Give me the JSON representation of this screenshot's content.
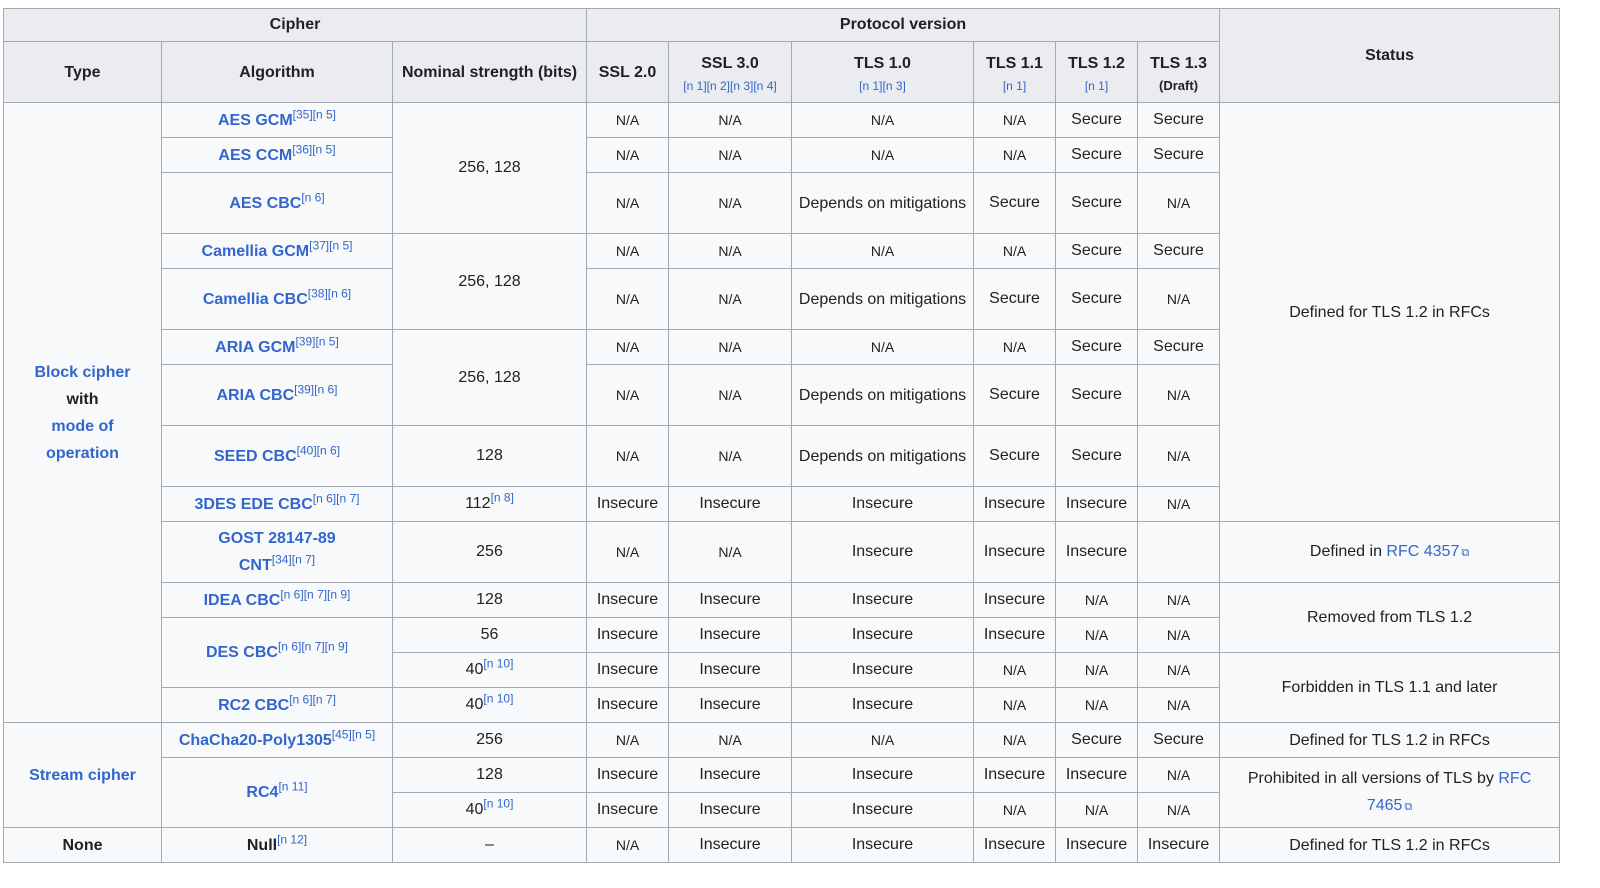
{
  "colors": {
    "secure": "#9ff8c8",
    "insecure": "#f7a3a5",
    "depends": "#ffead3",
    "na": "#ececec",
    "header": "#eaecf0",
    "link": "#3366cc"
  },
  "header": {
    "cipher": "Cipher",
    "protocol_version": "Protocol version",
    "status": "Status",
    "type": "Type",
    "algorithm": "Algorithm",
    "strength": "Nominal strength (bits)",
    "ssl20": "SSL 2.0",
    "ssl30": "SSL 3.0",
    "ssl30_refs": "[n 1][n 2][n 3][n 4]",
    "tls10": "TLS 1.0",
    "tls10_refs": "[n 1][n 3]",
    "tls11": "TLS 1.1",
    "tls11_refs": "[n 1]",
    "tls12": "TLS 1.2",
    "tls12_refs": "[n 1]",
    "tls13": "TLS 1.3",
    "tls13_sub": "(Draft)"
  },
  "types": {
    "block_cipher": "Block cipher",
    "with": "with",
    "mode_of": "mode of",
    "operation": "operation",
    "stream_cipher": "Stream cipher",
    "none": "None"
  },
  "values": {
    "na": "N/A",
    "secure": "Secure",
    "insecure": "Insecure",
    "depends": "Depends on mitigations",
    "dash": "–"
  },
  "strengths": {
    "s256_128": "256, 128",
    "s128": "128",
    "s112": "112",
    "s112_ref": "[n 8]",
    "s256": "256",
    "s56": "56",
    "s40": "40",
    "s40_ref": "[n 10]"
  },
  "algorithms": {
    "aes_gcm": "AES GCM",
    "aes_gcm_ref": "[35][n 5]",
    "aes_ccm": "AES CCM",
    "aes_ccm_ref": "[36][n 5]",
    "aes_cbc": "AES CBC",
    "aes_cbc_ref": "[n 6]",
    "cam_gcm": "Camellia GCM",
    "cam_gcm_ref": "[37][n 5]",
    "cam_cbc": "Camellia CBC",
    "cam_cbc_ref": "[38][n 6]",
    "aria_gcm": "ARIA GCM",
    "aria_gcm_ref": "[39][n 5]",
    "aria_cbc": "ARIA CBC",
    "aria_cbc_ref": "[39][n 6]",
    "seed_cbc": "SEED CBC",
    "seed_cbc_ref": "[40][n 6]",
    "des3_cbc": "3DES EDE CBC",
    "des3_cbc_ref": "[n 6][n 7]",
    "gost_1": "GOST 28147-89",
    "gost_2": "CNT",
    "gost_ref": "[34][n 7]",
    "idea_cbc": "IDEA CBC",
    "idea_cbc_ref": "[n 6][n 7][n 9]",
    "des_cbc": "DES CBC",
    "des_cbc_ref": "[n 6][n 7][n 9]",
    "rc2_cbc": "RC2 CBC",
    "rc2_cbc_ref": "[n 6][n 7]",
    "chacha": "ChaCha20-Poly1305",
    "chacha_ref": "[45][n 5]",
    "rc4": "RC4",
    "rc4_ref": "[n 11]",
    "null": "Null",
    "null_ref": "[n 12]"
  },
  "status": {
    "defined_tls12": "Defined for TLS 1.2 in RFCs",
    "defined_in": "Defined in ",
    "rfc4357": "RFC 4357",
    "removed_tls12": "Removed from TLS 1.2",
    "forbidden_tls11": "Forbidden in TLS 1.1 and later",
    "prohibited_pre": "Prohibited in all versions of TLS by ",
    "rfc_link1": "RFC",
    "rfc_link2": "7465",
    "defined_tls12_chacha": "Defined for TLS 1.2 in RFCs",
    "defined_tls12_null": "Defined for TLS 1.2 in RFCs"
  }
}
